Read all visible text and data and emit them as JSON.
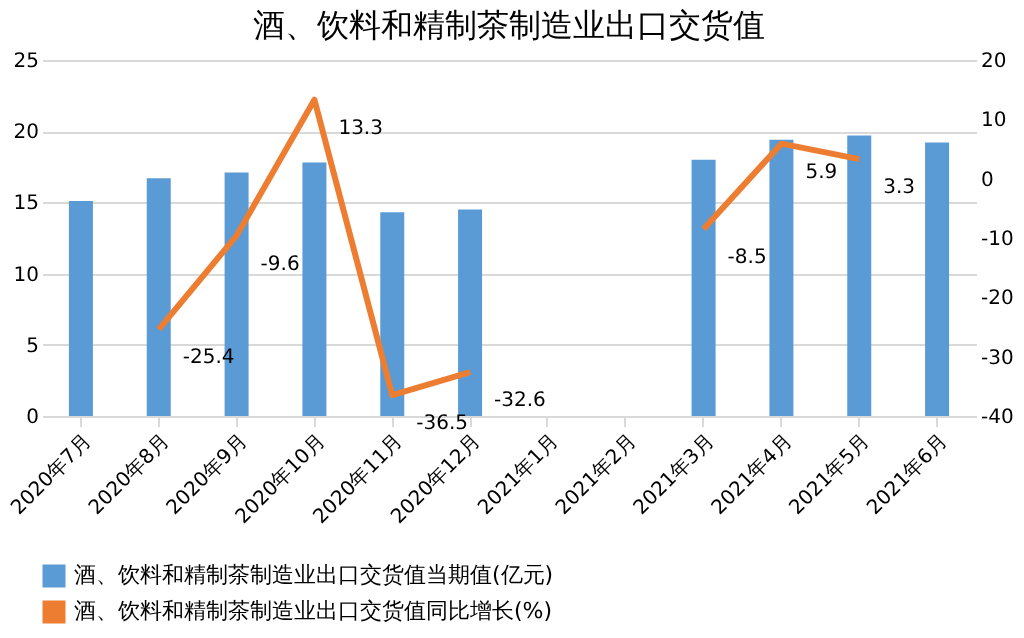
{
  "chart_data": {
    "type": "bar",
    "title": "酒、饮料和精制茶制造业出口交货值",
    "categories": [
      "2020年7月",
      "2020年8月",
      "2020年9月",
      "2020年10月",
      "2020年11月",
      "2020年12月",
      "2021年1月",
      "2021年2月",
      "2021年3月",
      "2021年4月",
      "2021年5月",
      "2021年6月"
    ],
    "series": [
      {
        "name": "酒、饮料和精制茶制造业出口交货值当期值(亿元)",
        "color": "#5b9bd5",
        "values": [
          15.1,
          16.7,
          17.1,
          17.8,
          14.3,
          14.5,
          null,
          null,
          18.0,
          19.4,
          19.7,
          19.2
        ]
      },
      {
        "name": "酒、饮料和精制茶制造业出口交货值同比增长(%)",
        "type": "line",
        "axis": "y2",
        "color": "#ed7d31",
        "values": [
          null,
          -25.4,
          -9.6,
          13.3,
          -36.5,
          -32.6,
          null,
          null,
          -8.5,
          5.9,
          3.3,
          null
        ],
        "value_labels": [
          null,
          "-25.4",
          "-9.6",
          "13.3",
          "-36.5",
          "-32.6",
          null,
          null,
          "-8.5",
          "5.9",
          "3.3",
          null
        ]
      }
    ],
    "ylim": [
      0,
      25
    ],
    "yticks": [
      0,
      5,
      10,
      15,
      20,
      25
    ],
    "y2lim": [
      -40,
      20
    ],
    "y2ticks": [
      -40,
      -30,
      -20,
      -10,
      0,
      10,
      20
    ],
    "grid": "y",
    "legend": "bottom",
    "marker": "none",
    "line_style": "solid"
  }
}
